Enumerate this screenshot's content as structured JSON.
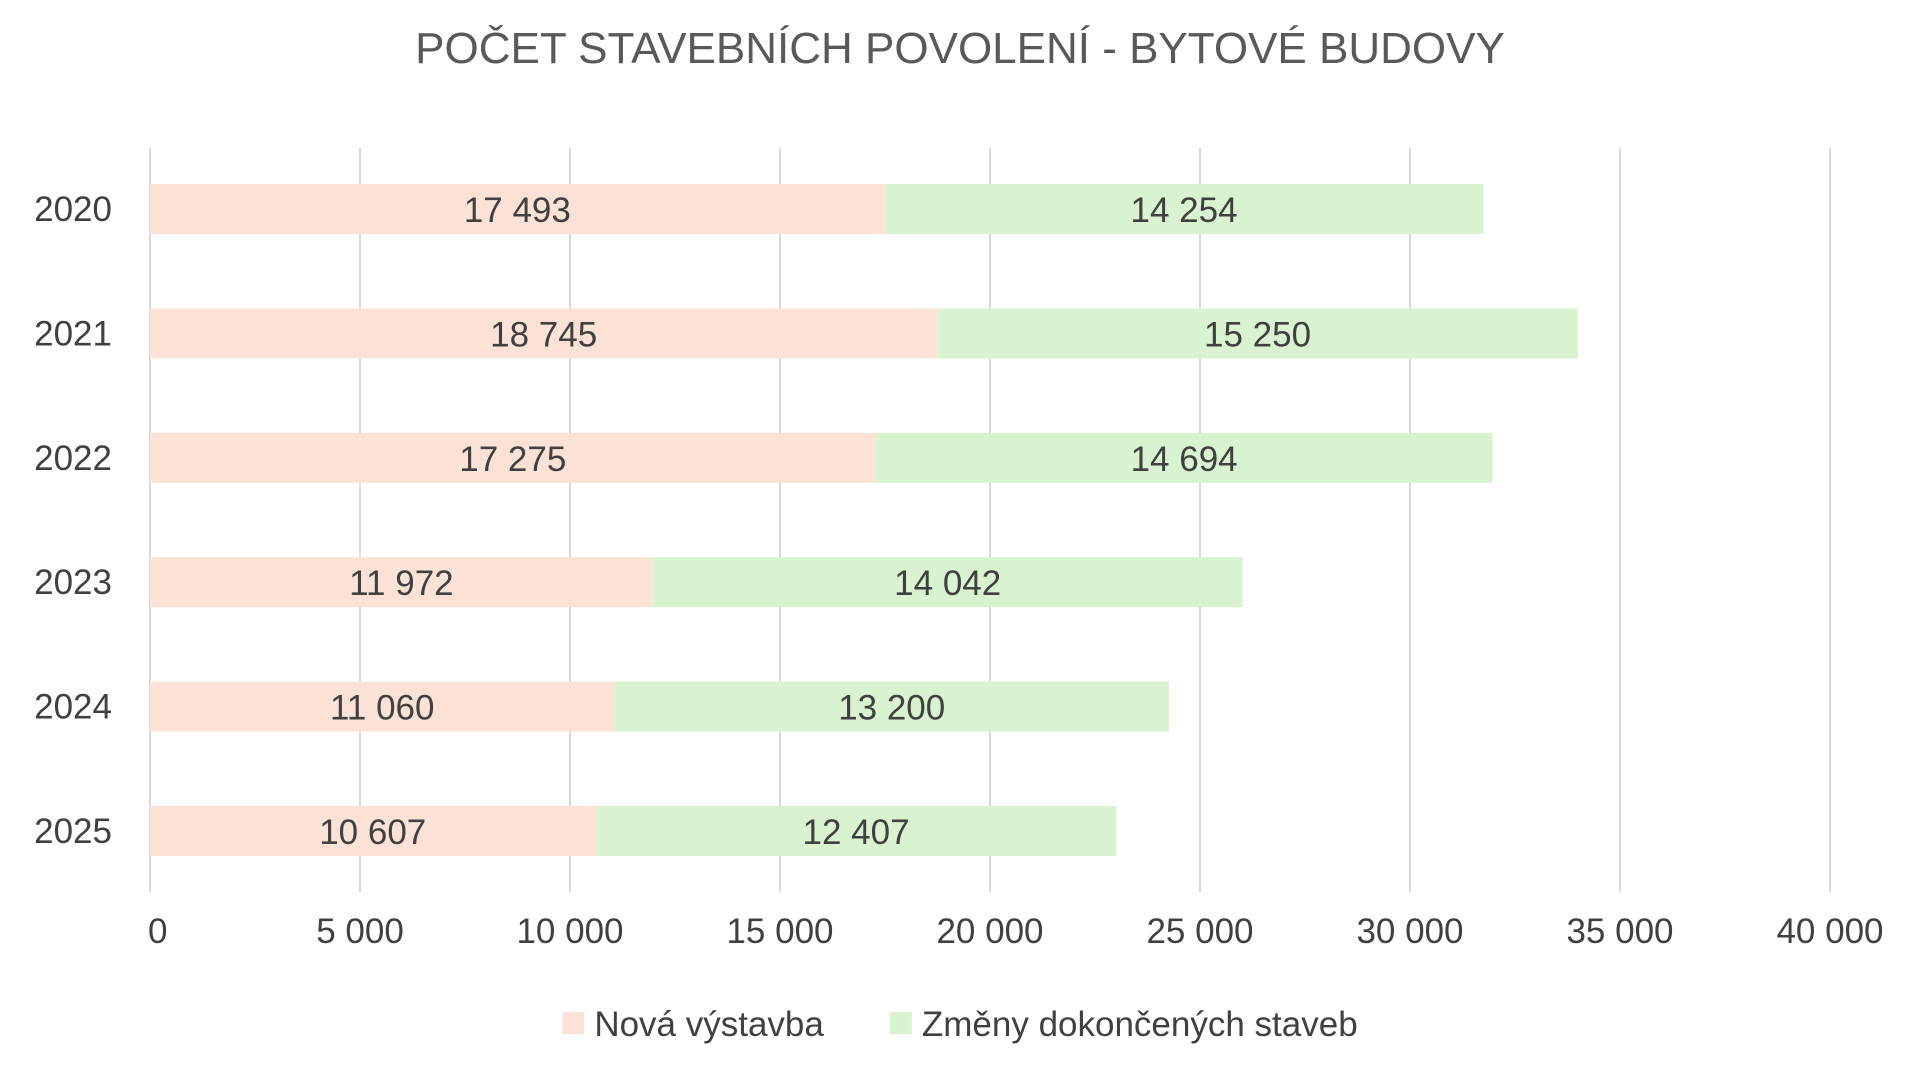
{
  "chart_data": {
    "type": "bar",
    "orientation": "horizontal",
    "stacked": true,
    "title": "POČET STAVEBNÍCH POVOLENÍ - BYTOVÉ BUDOVY",
    "categories": [
      "2020",
      "2021",
      "2022",
      "2023",
      "2024",
      "2025"
    ],
    "series": [
      {
        "name": "Nová výstavba",
        "color": "#fbe1d6",
        "values": [
          17493,
          18745,
          17275,
          11972,
          11060,
          10607
        ],
        "labels": [
          "17 493",
          "18 745",
          "17 275",
          "11 972",
          "11 060",
          "10 607"
        ]
      },
      {
        "name": "Změny dokončených staveb",
        "color": "#d9f2d0",
        "values": [
          14254,
          15250,
          14694,
          14042,
          13200,
          12407
        ],
        "labels": [
          "14 254",
          "15 250",
          "14 694",
          "14 042",
          "13 200",
          "12 407"
        ]
      }
    ],
    "xlim": [
      0,
      40000
    ],
    "x_ticks": [
      0,
      5000,
      10000,
      15000,
      20000,
      25000,
      30000,
      35000,
      40000
    ],
    "x_tick_labels": [
      "0",
      "5 000",
      "10 000",
      "15 000",
      "20 000",
      "25 000",
      "30 000",
      "35 000",
      "40 000"
    ],
    "grid": true,
    "legend": "bottom"
  }
}
